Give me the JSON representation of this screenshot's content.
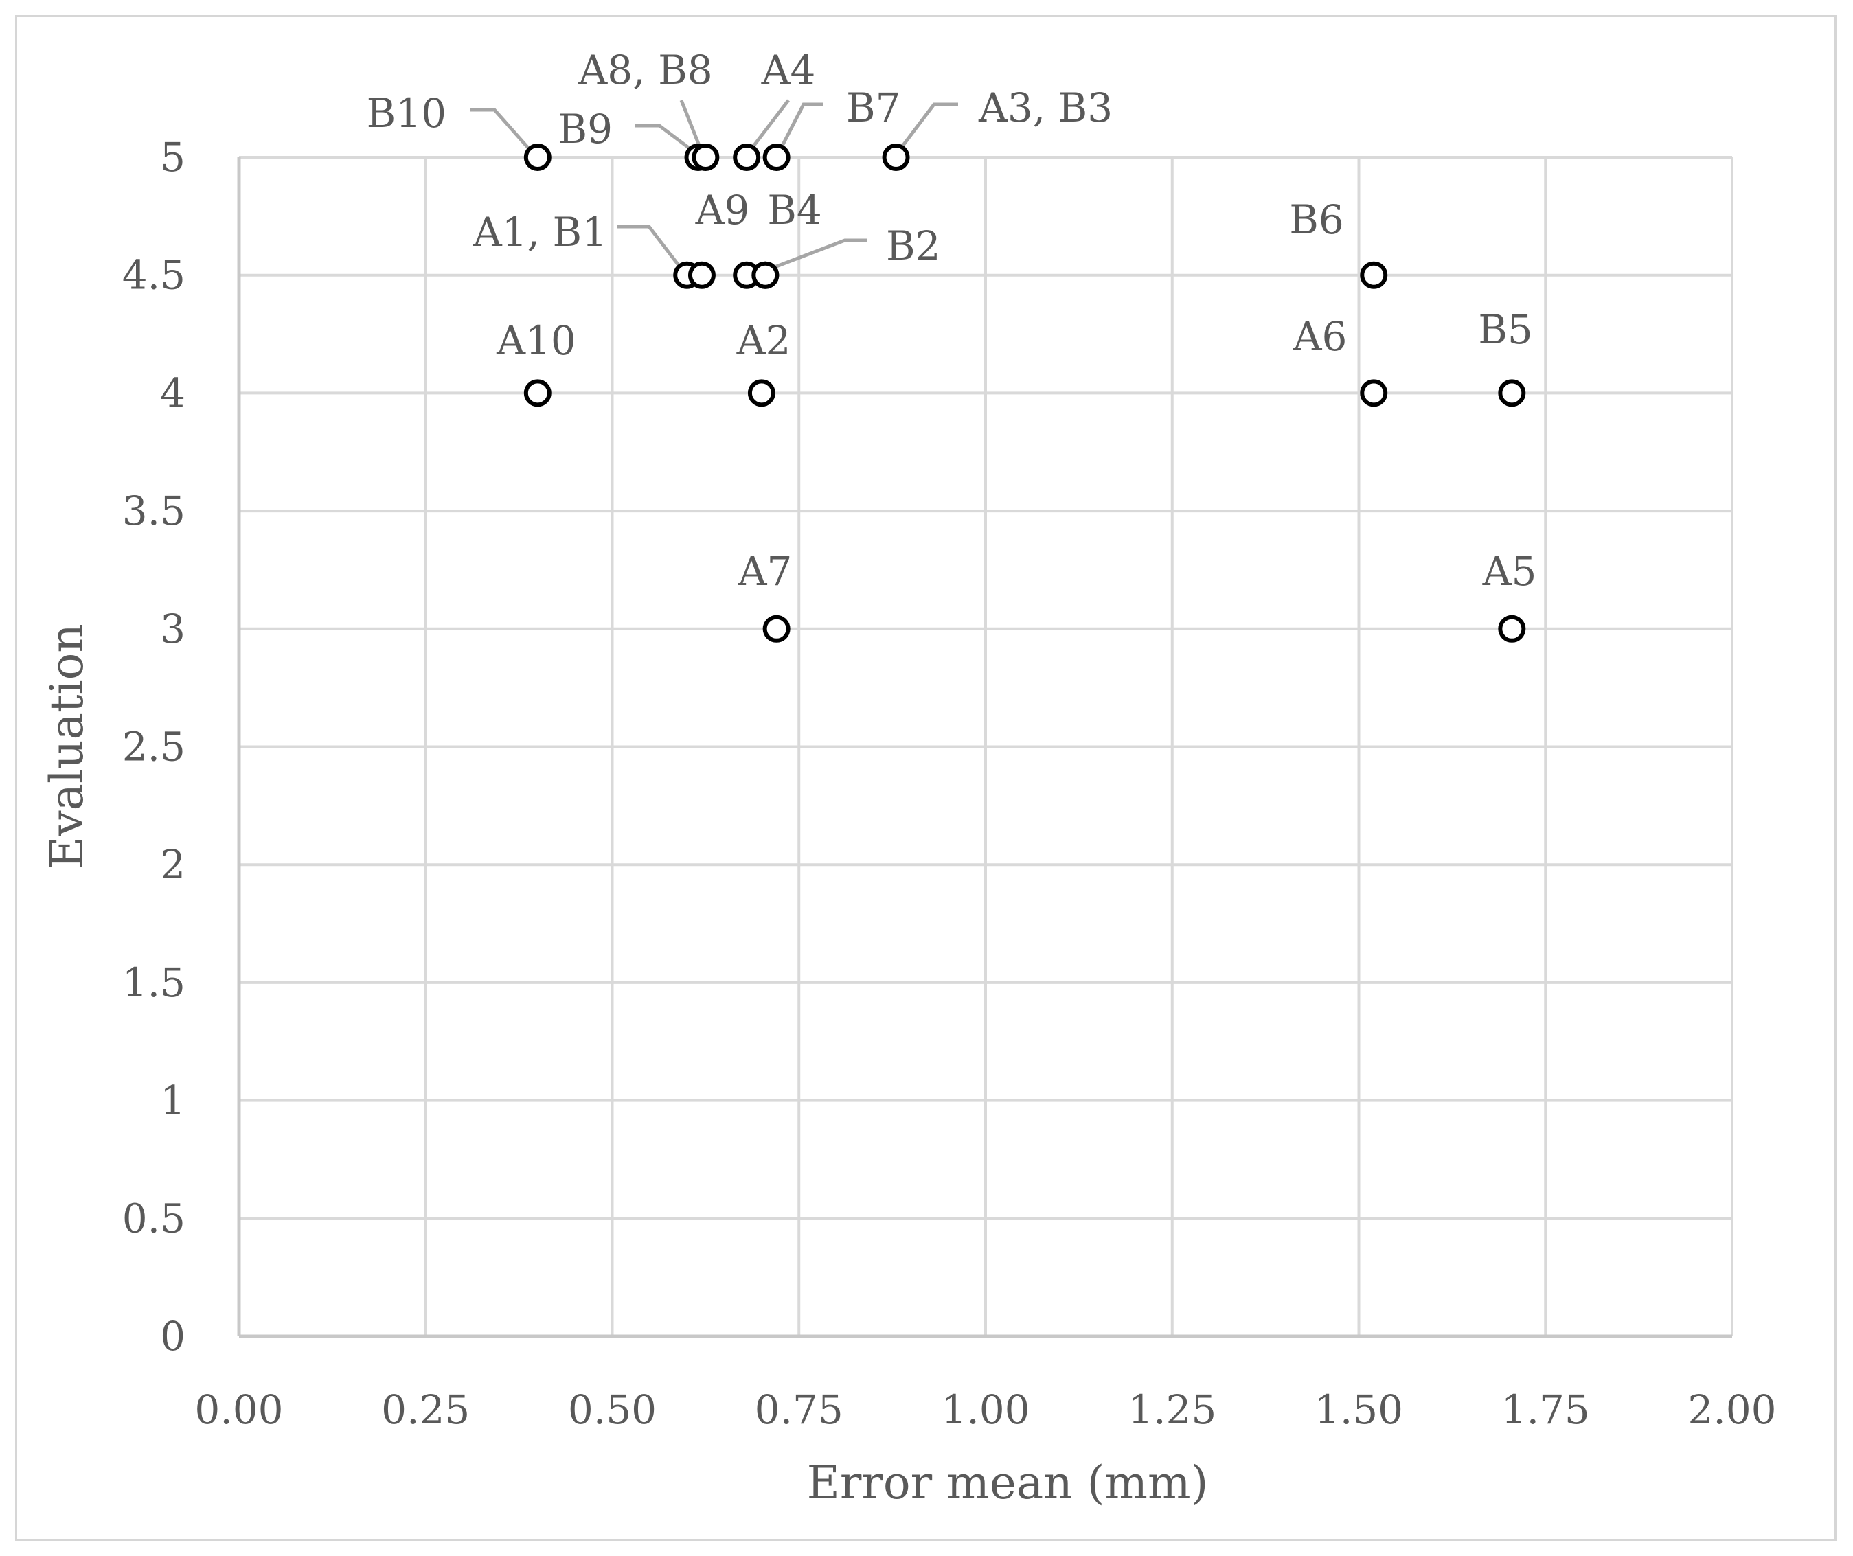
{
  "chart_data": {
    "type": "scatter",
    "title": "",
    "xlabel": "Error mean (mm)",
    "ylabel": "Evaluation",
    "xlim": [
      0,
      2
    ],
    "ylim": [
      0,
      5
    ],
    "x_ticks": [
      "0.00",
      "0.25",
      "0.50",
      "0.75",
      "1.00",
      "1.25",
      "1.50",
      "1.75",
      "2.00"
    ],
    "x_tick_values": [
      0,
      0.25,
      0.5,
      0.75,
      1.0,
      1.25,
      1.5,
      1.75,
      2.0
    ],
    "y_ticks": [
      "0",
      "0.5",
      "1",
      "1.5",
      "2",
      "2.5",
      "3",
      "3.5",
      "4",
      "4.5",
      "5"
    ],
    "y_tick_values": [
      0,
      0.5,
      1,
      1.5,
      2,
      2.5,
      3,
      3.5,
      4,
      4.5,
      5
    ],
    "grid": true,
    "legend": "none",
    "marker": "open-circle",
    "colors": {
      "grid": "#d9d9d9",
      "marker": "#000000",
      "text": "#595959",
      "leader": "#a6a6a6"
    },
    "points": [
      {
        "label": "B10",
        "x": 0.4,
        "y": 5.0
      },
      {
        "label": "B9",
        "x": 0.615,
        "y": 5.0
      },
      {
        "label": "A8, B8",
        "x": 0.625,
        "y": 5.0
      },
      {
        "label": "A4",
        "x": 0.68,
        "y": 5.0
      },
      {
        "label": "B7",
        "x": 0.72,
        "y": 5.0
      },
      {
        "label": "A3, B3",
        "x": 0.88,
        "y": 5.0
      },
      {
        "label": "A1, B1",
        "x": 0.6,
        "y": 4.5
      },
      {
        "label": "",
        "x": 0.62,
        "y": 4.5
      },
      {
        "label": "A9",
        "x": 0.68,
        "y": 4.5
      },
      {
        "label": "B4",
        "x": 0.705,
        "y": 4.5
      },
      {
        "label": "B2",
        "x": 0.705,
        "y": 4.5
      },
      {
        "label": "B6",
        "x": 1.52,
        "y": 4.5
      },
      {
        "label": "A10",
        "x": 0.4,
        "y": 4.0
      },
      {
        "label": "A2",
        "x": 0.7,
        "y": 4.0
      },
      {
        "label": "A6",
        "x": 1.52,
        "y": 4.0
      },
      {
        "label": "B5",
        "x": 1.705,
        "y": 4.0
      },
      {
        "label": "A7",
        "x": 0.72,
        "y": 3.0
      },
      {
        "label": "A5",
        "x": 1.705,
        "y": 3.0
      }
    ]
  }
}
